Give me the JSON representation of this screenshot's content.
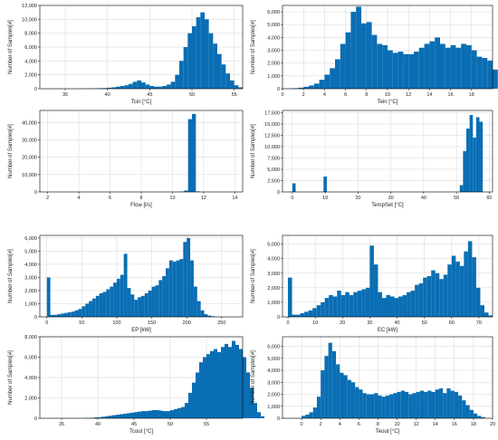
{
  "figure": {
    "bar_color": "#0a6eb4",
    "grid": true
  },
  "chart_data": [
    {
      "id": "tcin",
      "type": "bar",
      "xlabel": "Tcin [°C]",
      "ylabel": "Number of Samples[#]",
      "xlim": [
        32,
        56
      ],
      "ylim": [
        0,
        12000
      ],
      "xticks": [
        35,
        40,
        45,
        50,
        55
      ],
      "xtick_labels": [
        "35",
        "40",
        "45",
        "50",
        "55"
      ],
      "yticks": [
        0,
        2000,
        4000,
        6000,
        8000,
        10000,
        12000
      ],
      "ytick_labels": [
        "0",
        "2,000",
        "4,000",
        "6,000",
        "8,000",
        "10,000",
        "12,000"
      ],
      "bin_start": 37.0,
      "bin_width": 0.5,
      "values": [
        20,
        30,
        40,
        60,
        80,
        100,
        150,
        200,
        300,
        400,
        500,
        700,
        1000,
        1200,
        900,
        600,
        400,
        300,
        300,
        400,
        600,
        1000,
        2000,
        4000,
        6000,
        8000,
        9000,
        10300,
        11000,
        10000,
        8000,
        6500,
        5000,
        3500,
        2200,
        1200,
        500,
        200
      ]
    },
    {
      "id": "tein",
      "type": "bar",
      "xlabel": "Tein [°C]",
      "ylabel": "Number of Samples[#]",
      "xlim": [
        0,
        20
      ],
      "ylim": [
        0,
        6500
      ],
      "xticks": [
        0,
        2,
        4,
        6,
        8,
        10,
        12,
        14,
        16,
        18
      ],
      "xtick_labels": [
        "0",
        "2",
        "4",
        "6",
        "8",
        "10",
        "12",
        "14",
        "16",
        "18"
      ],
      "yticks": [
        0,
        1000,
        2000,
        3000,
        4000,
        5000,
        6000
      ],
      "ytick_labels": [
        "0",
        "1,000",
        "2,000",
        "3,000",
        "4,000",
        "5,000",
        "6,000"
      ],
      "bin_start": 0.5,
      "bin_width": 0.5,
      "values": [
        20,
        40,
        80,
        150,
        250,
        400,
        700,
        1100,
        1600,
        2300,
        3500,
        4400,
        6000,
        6400,
        5100,
        5200,
        4200,
        3500,
        3400,
        3000,
        2800,
        2900,
        2700,
        2700,
        2900,
        3200,
        3500,
        3700,
        4000,
        3500,
        3200,
        3400,
        3200,
        3500,
        3400,
        3000,
        2500,
        2400,
        2200,
        1500,
        600,
        200,
        50
      ]
    },
    {
      "id": "flow",
      "type": "bar",
      "xlabel": "Flow [l/s]",
      "ylabel": "Number of Samples[#]",
      "xlim": [
        1.5,
        14.5
      ],
      "ylim": [
        0,
        47000
      ],
      "xticks": [
        2,
        4,
        6,
        8,
        10,
        12,
        14
      ],
      "xtick_labels": [
        "2",
        "4",
        "6",
        "8",
        "10",
        "12",
        "14"
      ],
      "yticks": [
        0,
        10000,
        20000,
        30000,
        40000
      ],
      "ytick_labels": [
        "0",
        "10,000",
        "20,000",
        "30,000",
        "40,000"
      ],
      "bin_start": 10.5,
      "bin_width": 0.25,
      "values": [
        200,
        800,
        42000,
        45000,
        300
      ]
    },
    {
      "id": "tempset",
      "type": "bar",
      "xlabel": "TempSet [°C]",
      "ylabel": "Number of Samples[#]",
      "xlim": [
        -3,
        61
      ],
      "ylim": [
        0,
        18000
      ],
      "xticks": [
        0,
        10,
        20,
        30,
        40,
        50,
        60
      ],
      "xtick_labels": [
        "0",
        "10",
        "20",
        "30",
        "40",
        "50",
        "60"
      ],
      "yticks": [
        0,
        2500,
        5000,
        7500,
        10000,
        12500,
        15000,
        17500
      ],
      "ytick_labels": [
        "0",
        "2,500",
        "5,000",
        "7,500",
        "10,000",
        "12,500",
        "15,000",
        "17,500"
      ],
      "bin_start": 51.0,
      "bin_width": 1.0,
      "values": [
        1500,
        9000,
        14000,
        17000,
        12000,
        16500,
        15500
      ],
      "extra_bars": [
        {
          "x": 0.5,
          "value": 1900
        },
        {
          "x": 10.0,
          "value": 3400
        }
      ]
    },
    {
      "id": "ep",
      "type": "bar",
      "xlabel": "EP [kW]",
      "ylabel": "Number of Samples[#]",
      "xlim": [
        -10,
        280
      ],
      "ylim": [
        0,
        6200
      ],
      "xticks": [
        0,
        50,
        100,
        150,
        200,
        250
      ],
      "xtick_labels": [
        "0",
        "50",
        "100",
        "150",
        "200",
        "250"
      ],
      "yticks": [
        0,
        1000,
        2000,
        3000,
        4000,
        5000,
        6000
      ],
      "ytick_labels": [
        "0",
        "1,000",
        "2,000",
        "3,000",
        "4,000",
        "5,000",
        "6,000"
      ],
      "bin_start": 0,
      "bin_width": 5,
      "values": [
        3000,
        150,
        150,
        200,
        250,
        300,
        350,
        400,
        500,
        600,
        800,
        1000,
        1200,
        1400,
        1600,
        1800,
        1900,
        2100,
        2300,
        2600,
        2900,
        3200,
        4800,
        2200,
        1700,
        1300,
        1500,
        1600,
        1800,
        2000,
        2300,
        2400,
        2800,
        3100,
        3700,
        4300,
        4200,
        4300,
        4400,
        5700,
        6000,
        4300,
        2300,
        1200,
        500,
        200,
        100,
        50
      ]
    },
    {
      "id": "ec",
      "type": "bar",
      "xlabel": "EC [kW]",
      "ylabel": "Number of Samples[#]",
      "xlim": [
        -2,
        75
      ],
      "ylim": [
        0,
        5600
      ],
      "xticks": [
        0,
        10,
        20,
        30,
        40,
        50,
        60,
        70
      ],
      "xtick_labels": [
        "0",
        "10",
        "20",
        "30",
        "40",
        "50",
        "60",
        "70"
      ],
      "yticks": [
        0,
        1000,
        2000,
        3000,
        4000,
        5000
      ],
      "ytick_labels": [
        "0",
        "1,000",
        "2,000",
        "3,000",
        "4,000",
        "5,000"
      ],
      "bin_start": 0,
      "bin_width": 1.5,
      "values": [
        2700,
        150,
        150,
        250,
        350,
        450,
        600,
        800,
        1000,
        1300,
        1500,
        1400,
        1800,
        1500,
        1700,
        1500,
        1700,
        1800,
        1900,
        2000,
        4900,
        3600,
        1700,
        1300,
        1500,
        1400,
        1300,
        1400,
        1500,
        1700,
        1800,
        2200,
        2300,
        2700,
        2800,
        3200,
        3000,
        2600,
        2900,
        3600,
        4200,
        3800,
        3500,
        4500,
        5200,
        4100,
        2000,
        800,
        300,
        100
      ]
    },
    {
      "id": "tcout",
      "type": "bar",
      "xlabel": "Tcout [°C]",
      "ylabel": "Number of Samples[#]",
      "xlim": [
        32,
        60
      ],
      "ylim": [
        0,
        8000
      ],
      "xticks": [
        35,
        40,
        45,
        50,
        55
      ],
      "xtick_labels": [
        "35",
        "40",
        "45",
        "50",
        "55"
      ],
      "yticks": [
        0,
        2000,
        4000,
        6000,
        8000
      ],
      "ytick_labels": [
        "0",
        "2,000",
        "4,000",
        "6,000",
        "8,000"
      ],
      "bin_start": 38.0,
      "bin_width": 0.5,
      "values": [
        20,
        30,
        50,
        80,
        100,
        150,
        200,
        250,
        300,
        350,
        400,
        450,
        500,
        550,
        600,
        650,
        700,
        700,
        750,
        800,
        800,
        750,
        700,
        700,
        800,
        900,
        1000,
        1100,
        1500,
        2500,
        3500,
        4500,
        5500,
        6000,
        6300,
        6600,
        6800,
        6500,
        7000,
        7300,
        7000,
        7600,
        7200,
        6800,
        6000,
        4500,
        3000,
        1500,
        600,
        200
      ]
    },
    {
      "id": "teout",
      "type": "bar",
      "xlabel": "Teout [°C]",
      "ylabel": "Number of Samples[#]",
      "xlim": [
        -2,
        20
      ],
      "ylim": [
        0,
        6800
      ],
      "xticks": [
        0,
        2,
        4,
        6,
        8,
        10,
        12,
        14,
        16,
        18,
        20
      ],
      "xtick_labels": [
        "0",
        "2",
        "4",
        "6",
        "8",
        "10",
        "12",
        "14",
        "16",
        "18",
        "20"
      ],
      "yticks": [
        0,
        1000,
        2000,
        3000,
        4000,
        5000,
        6000
      ],
      "ytick_labels": [
        "0",
        "1,000",
        "2,000",
        "3,000",
        "4,000",
        "5,000",
        "6,000"
      ],
      "bin_start": 0,
      "bin_width": 0.4,
      "values": [
        200,
        300,
        500,
        900,
        1800,
        4000,
        5200,
        6300,
        5600,
        4500,
        3800,
        3600,
        3200,
        3000,
        2600,
        2400,
        2100,
        2000,
        2000,
        2100,
        1900,
        1800,
        1900,
        2000,
        2100,
        2200,
        2300,
        2200,
        2000,
        2100,
        2200,
        2300,
        2200,
        2300,
        2200,
        2400,
        2500,
        2100,
        2500,
        2300,
        2200,
        1900,
        1500,
        1100,
        700,
        400,
        200,
        100
      ]
    }
  ]
}
